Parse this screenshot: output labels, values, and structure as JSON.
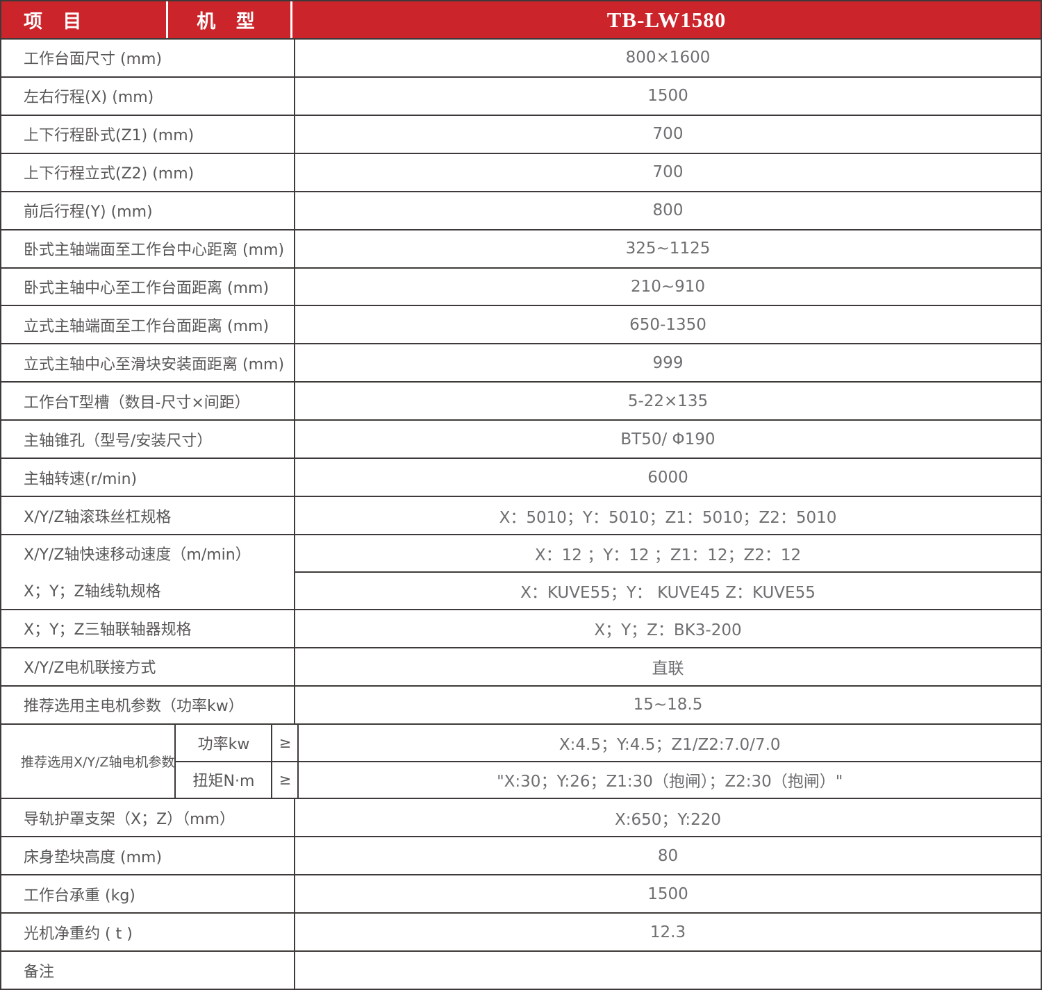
{
  "colors": {
    "red": "#cb242a",
    "border": "#3e3a39",
    "label": "#595757",
    "value": "#6e6f71"
  },
  "header": {
    "col_item": "项 目",
    "col_model": "机 型",
    "model": "TB-LW1580"
  },
  "rows_top": [
    {
      "label": "工作台面尺寸 (mm)",
      "value": "800×1600"
    },
    {
      "label": "左右行程(X) (mm)",
      "value": "1500"
    },
    {
      "label": "上下行程卧式(Z1) (mm)",
      "value": "700"
    },
    {
      "label": "上下行程立式(Z2) (mm)",
      "value": "700"
    },
    {
      "label": "前后行程(Y) (mm)",
      "value": "800"
    },
    {
      "label": "卧式主轴端面至工作台中心距离 (mm)",
      "value": "325~1125"
    },
    {
      "label": "卧式主轴中心至工作台面距离 (mm)",
      "value": "210~910"
    },
    {
      "label": "立式主轴端面至工作台面距离 (mm)",
      "value": "650-1350"
    },
    {
      "label": "立式主轴中心至滑块安装面距离 (mm)",
      "value": "999"
    },
    {
      "label": "工作台T型槽（数目-尺寸×间距）",
      "value": "5-22×135"
    },
    {
      "label": "主轴锥孔（型号/安装尺寸）",
      "value": "BT50/ Φ190"
    },
    {
      "label": "主轴转速(r/min)",
      "value": "6000"
    },
    {
      "label": "X/Y/Z轴滚珠丝杠规格",
      "value": "X：5010；Y：5010；Z1：5010；Z2：5010"
    }
  ],
  "speed_rail_block": {
    "label_line1": "X/Y/Z轴快速移动速度（m/min）",
    "value_line1": "X：12 ；Y：12 ；Z1：12；Z2：12",
    "label_line2": "X；Y；Z轴线轨规格",
    "value_line2": "X：KUVE55；Y： KUVE45 Z：KUVE55"
  },
  "rows_mid": [
    {
      "label": "X；Y；Z三轴联轴器规格",
      "value": "X；Y；Z：BK3-200"
    },
    {
      "label": "X/Y/Z电机联接方式",
      "value": "直联"
    },
    {
      "label": "推荐选用主电机参数（功率kw）",
      "value": "15~18.5"
    }
  ],
  "motor_block": {
    "label": "推荐选用X/Y/Z轴电机参数",
    "sub_rows": [
      {
        "param": "功率kw",
        "operator": "≥",
        "value": "X:4.5；Y:4.5；Z1/Z2:7.0/7.0"
      },
      {
        "param": "扭矩N·m",
        "operator": "≥",
        "value": "\"X:30；Y:26；Z1:30（抱闸）；Z2:30（抱闸）\""
      }
    ]
  },
  "rows_bottom": [
    {
      "label": "导轨护罩支架（X；Z）（mm）",
      "value": "X:650；Y:220"
    },
    {
      "label": "床身垫块高度 (mm)",
      "value": "80"
    },
    {
      "label": "工作台承重 (kg)",
      "value": "1500"
    },
    {
      "label": "光机净重约 ( t )",
      "value": "12.3"
    },
    {
      "label": "备注",
      "value": ""
    }
  ]
}
